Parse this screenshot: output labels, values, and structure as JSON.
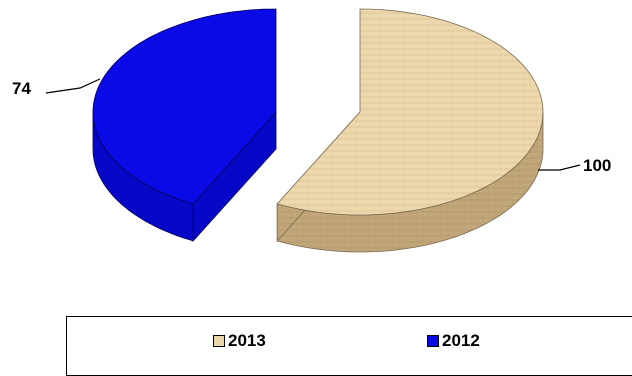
{
  "chart_data": {
    "type": "pie",
    "style": "3d-exploded",
    "categories": [
      "2013",
      "2012"
    ],
    "values": [
      100,
      74
    ],
    "colors": [
      "#e8d2a6",
      "#0a0ae6"
    ],
    "data_labels": [
      "100",
      "74"
    ],
    "legend": {
      "placement": "bottom",
      "entries": [
        {
          "label": "2013",
          "color": "#e8d2a6"
        },
        {
          "label": "2012",
          "color": "#0a0ae6"
        }
      ]
    }
  }
}
